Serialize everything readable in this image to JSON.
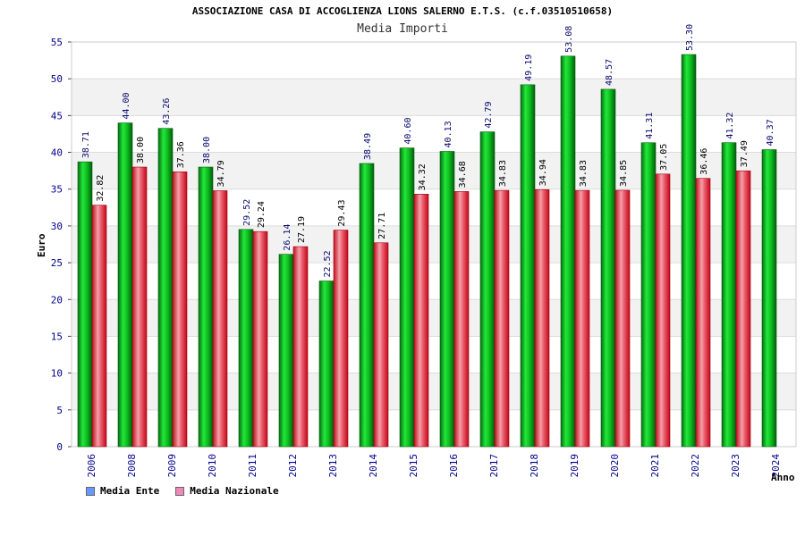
{
  "chart_data": {
    "type": "bar",
    "title": "ASSOCIAZIONE CASA DI ACCOGLIENZA LIONS SALERNO E.T.S. (c.f.03510510658)",
    "subtitle": "Media Importi",
    "xlabel": "Anno",
    "ylabel": "Euro",
    "ylim": [
      0,
      55
    ],
    "yticks": [
      "0",
      "5",
      "10",
      "15",
      "20",
      "25",
      "30",
      "35",
      "40",
      "45",
      "50",
      "55"
    ],
    "grid": true,
    "legend_position": "bottom-left",
    "categories": [
      "2006",
      "2008",
      "2009",
      "2010",
      "2011",
      "2012",
      "2013",
      "2014",
      "2015",
      "2016",
      "2017",
      "2018",
      "2019",
      "2020",
      "2021",
      "2022",
      "2023",
      "2024"
    ],
    "series": [
      {
        "name": "Media Ente",
        "color": "#0aa51a",
        "legend_color": "#6699ff",
        "values": [
          38.71,
          44.0,
          43.26,
          38.0,
          29.52,
          26.14,
          22.52,
          38.49,
          40.6,
          40.13,
          42.79,
          49.19,
          53.08,
          48.57,
          41.31,
          53.3,
          41.32,
          40.37
        ],
        "labels": [
          "38.71",
          "44.00",
          "43.26",
          "38.00",
          "29.52",
          "26.14",
          "22.52",
          "38.49",
          "40.60",
          "40.13",
          "42.79",
          "49.19",
          "53.08",
          "48.57",
          "41.31",
          "53.30",
          "41.32",
          "40.37"
        ]
      },
      {
        "name": "Media Nazionale",
        "color": "#e8102a",
        "legend_color": "#ee88bb",
        "values": [
          32.82,
          38.0,
          37.36,
          34.79,
          29.24,
          27.19,
          29.43,
          27.71,
          34.32,
          34.68,
          34.83,
          34.94,
          34.83,
          34.85,
          37.05,
          36.46,
          37.49,
          null
        ],
        "labels": [
          "32.82",
          "38.00",
          "37.36",
          "34.79",
          "29.24",
          "27.19",
          "29.43",
          "27.71",
          "34.32",
          "34.68",
          "34.83",
          "34.94",
          "34.83",
          "34.85",
          "37.05",
          "36.46",
          "37.49",
          null
        ]
      }
    ]
  }
}
